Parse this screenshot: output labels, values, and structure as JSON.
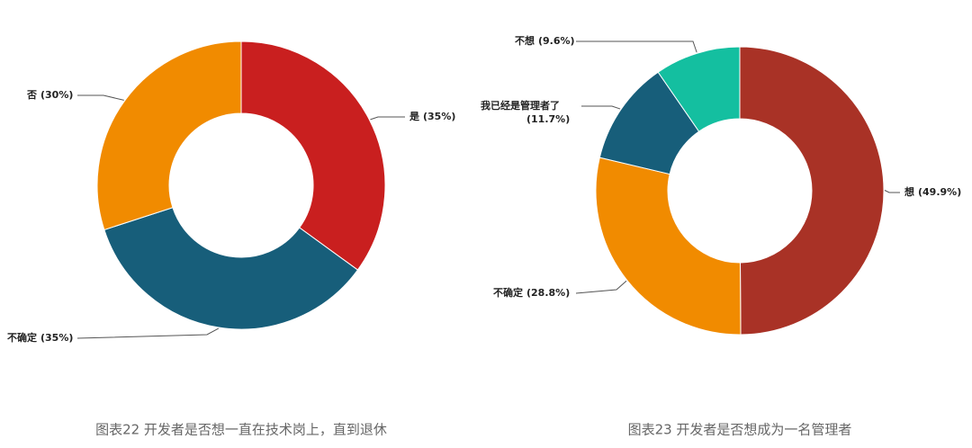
{
  "chart_data": [
    {
      "type": "donut",
      "title": "图表22 开发者是否想一直在技术岗上，直到退休",
      "categories": [
        "是",
        "不确定",
        "否"
      ],
      "values": [
        35,
        35,
        30
      ],
      "value_labels": [
        "(35%)",
        "(35%)",
        "(30%)"
      ],
      "colors": [
        "#c91f1f",
        "#175e7a",
        "#f18b00"
      ]
    },
    {
      "type": "donut",
      "title": "图表23 开发者是否想成为一名管理者",
      "categories": [
        "想",
        "不确定",
        "我已经是管理者了",
        "不想"
      ],
      "values": [
        49.9,
        28.8,
        11.7,
        9.6
      ],
      "value_labels": [
        "(49.9%)",
        "(28.8%)",
        "(11.7%)",
        "(9.6%)"
      ],
      "colors": [
        "#a93226",
        "#f18b00",
        "#175e7a",
        "#14bfa0"
      ]
    }
  ]
}
